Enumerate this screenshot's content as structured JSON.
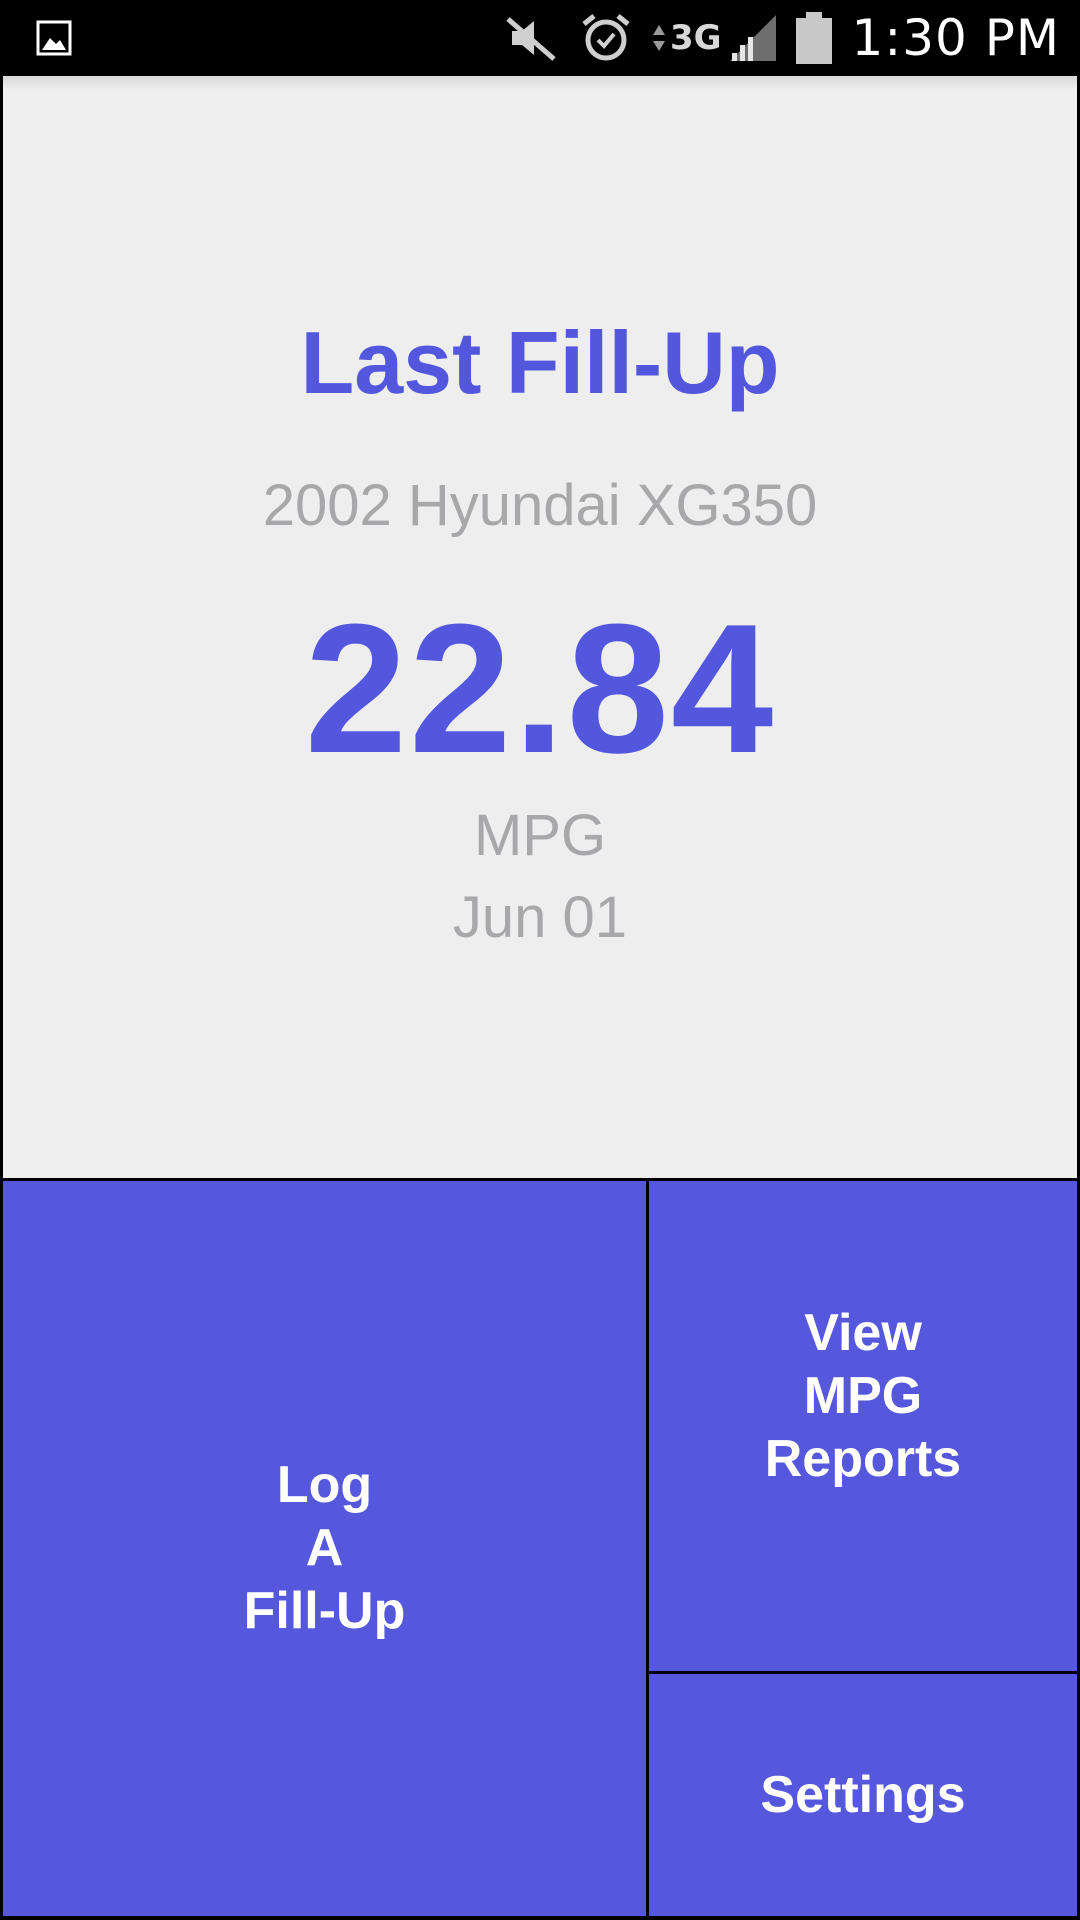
{
  "status_bar": {
    "time": "1:30 PM",
    "network_type": "3G",
    "icons": [
      "gallery-icon",
      "mute-icon",
      "alarm-icon",
      "data-arrows-icon",
      "signal-icon",
      "battery-icon"
    ]
  },
  "last_fillup": {
    "title": "Last Fill-Up",
    "vehicle": "2002 Hyundai XG350",
    "mpg_value": "22.84",
    "unit": "MPG",
    "date": "Jun 01"
  },
  "actions": {
    "log_fillup_label": "Log\nA\nFill-Up",
    "view_reports_label": "View\nMPG\nReports",
    "settings_label": "Settings"
  },
  "colors": {
    "accent": "#5357dd",
    "card_background": "#eeeeef",
    "secondary_text": "#a8a8aa",
    "tile_text": "#ffffff"
  }
}
